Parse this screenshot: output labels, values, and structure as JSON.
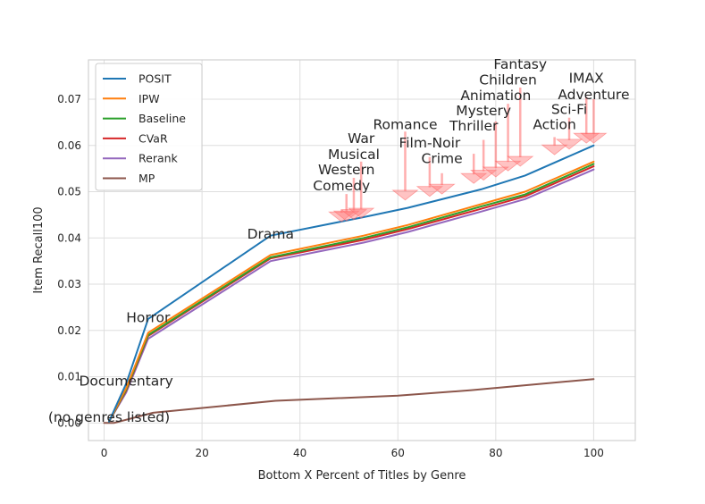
{
  "chart_data": {
    "type": "line",
    "title": "",
    "xlabel": "Bottom X Percent of Titles by Genre",
    "ylabel": "Item Recall100",
    "xlim": [
      -3.2,
      108.5
    ],
    "ylim": [
      -0.0038,
      0.0785
    ],
    "grid": true,
    "legend_position": "top-left",
    "x_ticks": [
      0,
      20,
      40,
      60,
      80,
      100
    ],
    "y_ticks": [
      0.0,
      0.01,
      0.02,
      0.03,
      0.04,
      0.05,
      0.06,
      0.07
    ],
    "x_tick_labels": [
      "0",
      "20",
      "40",
      "60",
      "80",
      "100"
    ],
    "y_tick_labels": [
      "0.00",
      "0.01",
      "0.02",
      "0.03",
      "0.04",
      "0.05",
      "0.06",
      "0.07"
    ],
    "series": [
      {
        "name": "POSIT",
        "color": "#1f77b4",
        "x": [
          1,
          4.5,
          9,
          34,
          53,
          62,
          77,
          86,
          100
        ],
        "y": [
          0.0003,
          0.0085,
          0.0225,
          0.0405,
          0.0445,
          0.0465,
          0.0505,
          0.0535,
          0.06
        ]
      },
      {
        "name": "IPW",
        "color": "#ff7f0e",
        "x": [
          1,
          4.5,
          9,
          34,
          53,
          62,
          77,
          86,
          100
        ],
        "y": [
          0.0003,
          0.0075,
          0.0195,
          0.0363,
          0.0405,
          0.0428,
          0.0473,
          0.05,
          0.0565
        ]
      },
      {
        "name": "Baseline",
        "color": "#2ca02c",
        "x": [
          1,
          4.5,
          9,
          34,
          53,
          62,
          77,
          86,
          100
        ],
        "y": [
          0.0003,
          0.0072,
          0.019,
          0.0358,
          0.04,
          0.0423,
          0.0468,
          0.0494,
          0.056
        ]
      },
      {
        "name": "CVaR",
        "color": "#d62728",
        "x": [
          1,
          4.5,
          9,
          34,
          53,
          62,
          77,
          86,
          100
        ],
        "y": [
          0.0003,
          0.007,
          0.0188,
          0.0356,
          0.0396,
          0.0419,
          0.0463,
          0.049,
          0.0555
        ]
      },
      {
        "name": "Rerank",
        "color": "#9467bd",
        "x": [
          1,
          4.5,
          9,
          34,
          53,
          62,
          77,
          86,
          100
        ],
        "y": [
          0.0003,
          0.0066,
          0.0182,
          0.035,
          0.039,
          0.0413,
          0.0457,
          0.0484,
          0.0548
        ]
      },
      {
        "name": "MP",
        "color": "#8c564b",
        "x": [
          0,
          2,
          10,
          35,
          60,
          75,
          100
        ],
        "y": [
          0.0,
          0.0,
          0.0022,
          0.0048,
          0.0059,
          0.0071,
          0.0095
        ]
      }
    ],
    "annotations": [
      {
        "text": "(no genres listed)",
        "x": 1,
        "y": 0.0003,
        "ty": 0.0012,
        "arrow_to_y": null
      },
      {
        "text": "Documentary",
        "x": 4.5,
        "y": 0.0085,
        "ty": 0.009,
        "arrow_to_y": null
      },
      {
        "text": "Horror",
        "x": 9,
        "y": 0.0225,
        "ty": 0.0228,
        "arrow_to_y": null
      },
      {
        "text": "Drama",
        "x": 34,
        "y": 0.0405,
        "ty": 0.0408,
        "arrow_to_y": null
      },
      {
        "text": "Comedy",
        "x": 48.5,
        "y": 0.046,
        "ty": 0.0513,
        "arrow_to_y": 0.0435
      },
      {
        "text": "Western",
        "x": 49.5,
        "y": 0.0495,
        "ty": 0.0547,
        "arrow_to_y": 0.0437
      },
      {
        "text": "Musical",
        "x": 51,
        "y": 0.053,
        "ty": 0.058,
        "arrow_to_y": 0.044
      },
      {
        "text": "War",
        "x": 52.5,
        "y": 0.0565,
        "ty": 0.0615,
        "arrow_to_y": 0.0443
      },
      {
        "text": "Romance",
        "x": 61.5,
        "y": 0.063,
        "ty": 0.0645,
        "arrow_to_y": 0.0482
      },
      {
        "text": "Film-Noir",
        "x": 66.5,
        "y": 0.0575,
        "ty": 0.0605,
        "arrow_to_y": 0.049
      },
      {
        "text": "Crime",
        "x": 69,
        "y": 0.054,
        "ty": 0.0572,
        "arrow_to_y": 0.0495
      },
      {
        "text": "Thriller",
        "x": 75.5,
        "y": 0.0582,
        "ty": 0.0642,
        "arrow_to_y": 0.0518
      },
      {
        "text": "Mystery",
        "x": 77.5,
        "y": 0.0612,
        "ty": 0.0675,
        "arrow_to_y": 0.0525
      },
      {
        "text": "Animation",
        "x": 80,
        "y": 0.0652,
        "ty": 0.0708,
        "arrow_to_y": 0.0532
      },
      {
        "text": "Children",
        "x": 82.5,
        "y": 0.069,
        "ty": 0.0742,
        "arrow_to_y": 0.0545
      },
      {
        "text": "Fantasy",
        "x": 85,
        "y": 0.0725,
        "ty": 0.0775,
        "arrow_to_y": 0.0555
      },
      {
        "text": "Action",
        "x": 92,
        "y": 0.0618,
        "ty": 0.0645,
        "arrow_to_y": 0.058
      },
      {
        "text": "Sci-Fi",
        "x": 95,
        "y": 0.066,
        "ty": 0.0678,
        "arrow_to_y": 0.0592
      },
      {
        "text": "IMAX",
        "x": 98.5,
        "y": 0.0705,
        "ty": 0.0745,
        "arrow_to_y": 0.0605
      },
      {
        "text": "Adventure",
        "x": 100,
        "y": 0.07,
        "ty": 0.071,
        "arrow_to_y": 0.0605
      }
    ]
  }
}
